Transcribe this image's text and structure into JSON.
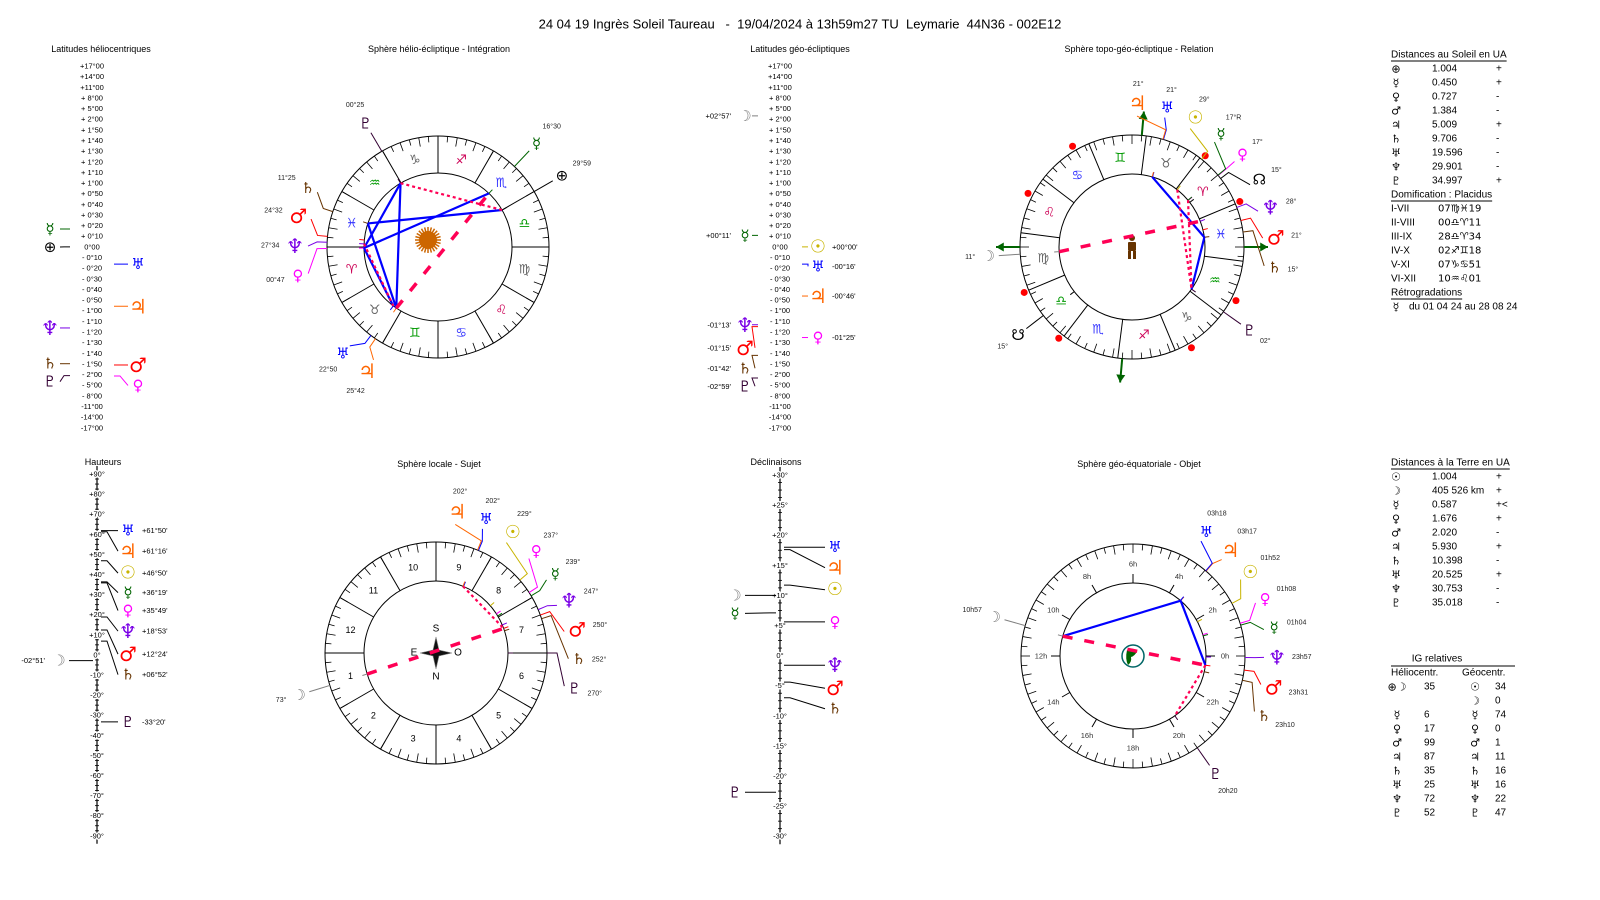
{
  "title": "24 04 19 Ingrès Soleil Taureau   -  19/04/2024 à 13h59m27 TU  Leymarie  44N36 - 002E12",
  "planets": {
    "earth": {
      "glyph": "⊕",
      "color": "#000000"
    },
    "sun": {
      "glyph": "☉",
      "color": "#c8b400"
    },
    "moon": {
      "glyph": "☽",
      "color": "#808080"
    },
    "mercury": {
      "glyph": "☿",
      "color": "#006400"
    },
    "venus": {
      "glyph": "♀",
      "color": "#ff00ff"
    },
    "mars": {
      "glyph": "♂",
      "color": "#ff0000"
    },
    "jupiter": {
      "glyph": "♃",
      "color": "#ff6600"
    },
    "saturn": {
      "glyph": "♄",
      "color": "#663300"
    },
    "uranus": {
      "glyph": "♅",
      "color": "#0000ff"
    },
    "neptune": {
      "glyph": "♆",
      "color": "#7a00e6"
    },
    "pluto": {
      "glyph": "♇",
      "color": "#330033"
    },
    "node": {
      "glyph": "☊",
      "color": "#000000"
    },
    "south_node": {
      "glyph": "☋",
      "color": "#000000"
    }
  },
  "signs": [
    {
      "glyph": "♈",
      "color": "#cc0055"
    },
    {
      "glyph": "♉",
      "color": "#666666"
    },
    {
      "glyph": "♊",
      "color": "#009900"
    },
    {
      "glyph": "♋",
      "color": "#3333ff"
    },
    {
      "glyph": "♌",
      "color": "#cc0055"
    },
    {
      "glyph": "♍",
      "color": "#666666"
    },
    {
      "glyph": "♎",
      "color": "#009900"
    },
    {
      "glyph": "♏",
      "color": "#3333ff"
    },
    {
      "glyph": "♐",
      "color": "#cc0055"
    },
    {
      "glyph": "♑",
      "color": "#666666"
    },
    {
      "glyph": "♒",
      "color": "#009900"
    },
    {
      "glyph": "♓",
      "color": "#3333ff"
    }
  ],
  "aspect_colors": {
    "blue": "#0000ff",
    "red": "#ff0055"
  },
  "chart_data": [
    {
      "type": "scale",
      "id": "helio_lat",
      "title": "Latitudes héliocentriques",
      "ticks": [
        "+17°00",
        "+14°00",
        "+11°00",
        "+ 8°00",
        "+ 5°00",
        "+ 2°00",
        "+ 1°50",
        "+ 1°40",
        "+ 1°30",
        "+ 1°20",
        "+ 1°10",
        "+ 1°00",
        "+ 0°50",
        "+ 0°40",
        "+ 0°30",
        "+ 0°20",
        "+ 0°10",
        "0°00",
        "- 0°10",
        "- 0°20",
        "- 0°30",
        "- 0°40",
        "- 0°50",
        "- 1°00",
        "- 1°10",
        "- 1°20",
        "- 1°30",
        "- 1°40",
        "- 1°50",
        "- 2°00",
        "- 5°00",
        "- 8°00",
        "-11°00",
        "-14°00",
        "-17°00"
      ],
      "planets": [
        {
          "p": "mercury",
          "value": 0.28,
          "side": "left"
        },
        {
          "p": "earth",
          "value": 0.0,
          "side": "left"
        },
        {
          "p": "uranus",
          "value": -0.27,
          "side": "right"
        },
        {
          "p": "jupiter",
          "value": -0.93,
          "side": "right"
        },
        {
          "p": "neptune",
          "value": -1.27,
          "side": "left"
        },
        {
          "p": "saturn",
          "value": -1.83,
          "side": "left"
        },
        {
          "p": "mars",
          "value": -1.85,
          "side": "right"
        },
        {
          "p": "pluto",
          "value": -2.3,
          "side": "left"
        },
        {
          "p": "venus",
          "value": -2.4,
          "side": "right"
        }
      ]
    },
    {
      "type": "wheel",
      "id": "helio_wheel",
      "title": "Sphère hélio-écliptique - Intégration",
      "rotation": 0,
      "planets": [
        {
          "p": "pluto",
          "lon": 300.42,
          "label": "00°25"
        },
        {
          "p": "mars",
          "lon": 354.53,
          "label": "24°32"
        },
        {
          "p": "saturn",
          "lon": 341.42,
          "label": "11°25"
        },
        {
          "p": "neptune",
          "lon": 357.57,
          "label": "27°34"
        },
        {
          "p": "venus",
          "lon": 0.78,
          "label": "00°47"
        },
        {
          "p": "uranus",
          "lon": 52.83,
          "label": "22°50"
        },
        {
          "p": "jupiter",
          "lon": 55.7,
          "label": "25°42"
        },
        {
          "p": "mercury",
          "lon": 226.5,
          "label": "16°30"
        },
        {
          "p": "earth",
          "lon": 209.98,
          "label": "29°59"
        }
      ],
      "aspects": [
        {
          "a": "pluto",
          "b": "jupiter",
          "kind": "blue"
        },
        {
          "a": "pluto",
          "b": "venus",
          "kind": "blue"
        },
        {
          "a": "venus",
          "b": "mercury",
          "kind": "blue"
        },
        {
          "a": "saturn",
          "b": "earth",
          "kind": "blue"
        },
        {
          "a": "venus",
          "b": "uranus",
          "kind": "blue"
        },
        {
          "a": "saturn",
          "b": "jupiter",
          "kind": "blue"
        },
        {
          "a": "pluto",
          "b": "earth",
          "kind": "red-dot"
        },
        {
          "a": "neptune",
          "b": "uranus",
          "kind": "red-dot"
        },
        {
          "a": "jupiter",
          "b": "mercury",
          "kind": "red-dash"
        }
      ]
    },
    {
      "type": "scale",
      "id": "geo_lat",
      "title": "Latitudes géo-écliptiques",
      "ticks": [
        "+17°00",
        "+14°00",
        "+11°00",
        "+ 8°00",
        "+ 5°00",
        "+ 2°00",
        "+ 1°50",
        "+ 1°40",
        "+ 1°30",
        "+ 1°20",
        "+ 1°10",
        "+ 1°00",
        "+ 0°50",
        "+ 0°40",
        "+ 0°30",
        "+ 0°20",
        "+ 0°10",
        "0°00",
        "- 0°10",
        "- 0°20",
        "- 0°30",
        "- 0°40",
        "- 0°50",
        "- 1°00",
        "- 1°10",
        "- 1°20",
        "- 1°30",
        "- 1°40",
        "- 1°50",
        "- 2°00",
        "- 5°00",
        "- 8°00",
        "-11°00",
        "-14°00",
        "-17°00"
      ],
      "planets": [
        {
          "p": "moon",
          "value": 2.95,
          "side": "left",
          "label": "+02°57'"
        },
        {
          "p": "mercury",
          "value": 0.18,
          "side": "left",
          "label": "+00°11'"
        },
        {
          "p": "sun",
          "value": 0.0,
          "side": "right",
          "label": "+00°00'"
        },
        {
          "p": "uranus",
          "value": -0.27,
          "side": "right",
          "label": "-00°16'"
        },
        {
          "p": "jupiter",
          "value": -0.77,
          "side": "right",
          "label": "-00°46'"
        },
        {
          "p": "neptune",
          "value": -1.22,
          "side": "left",
          "label": "-01°13'"
        },
        {
          "p": "mars",
          "value": -1.25,
          "side": "left",
          "label": "-01°15'"
        },
        {
          "p": "venus",
          "value": -1.42,
          "side": "right",
          "label": "-01°25'"
        },
        {
          "p": "saturn",
          "value": -1.7,
          "side": "left",
          "label": "-01°42'"
        },
        {
          "p": "pluto",
          "value": -2.98,
          "side": "left",
          "label": "-02°59'"
        }
      ]
    },
    {
      "type": "wheel",
      "id": "topo_wheel",
      "title": "Sphère topo-géo-écliptique - Relation",
      "rotation": 157.32,
      "house_cusps": [
        157.32,
        180.18,
        208.57,
        242.3,
        277.85,
        310.02,
        337.32,
        0.18,
        28.57,
        62.3,
        97.85,
        130.02
      ],
      "planets": [
        {
          "p": "uranus",
          "lon": 51.0,
          "label": "21°"
        },
        {
          "p": "jupiter",
          "lon": 51.3,
          "label": "21°"
        },
        {
          "p": "sun",
          "lon": 29.0,
          "label": "29°"
        },
        {
          "p": "venus",
          "lon": 17.0,
          "label": "17°"
        },
        {
          "p": "mercury",
          "lon": 17.2,
          "label": "17°R"
        },
        {
          "p": "node",
          "lon": 15.0,
          "label": "15°"
        },
        {
          "p": "neptune",
          "lon": 358.0,
          "label": "28°"
        },
        {
          "p": "mars",
          "lon": 351.0,
          "label": "21°"
        },
        {
          "p": "saturn",
          "lon": 345.0,
          "label": "15°"
        },
        {
          "p": "pluto",
          "lon": 302.0,
          "label": "02°"
        },
        {
          "p": "moon",
          "lon": 161.0,
          "label": "11°"
        },
        {
          "p": "south_node",
          "lon": 195.0,
          "label": "15°"
        }
      ],
      "aspects": [
        {
          "a": "jupiter",
          "b": "saturn",
          "kind": "blue"
        },
        {
          "a": "saturn",
          "b": "pluto",
          "kind": "blue"
        },
        {
          "a": "sun",
          "b": "pluto",
          "kind": "red-dot"
        },
        {
          "a": "mercury",
          "b": "pluto",
          "kind": "red-dot"
        },
        {
          "a": "moon",
          "b": "neptune",
          "kind": "red-dash"
        }
      ]
    },
    {
      "type": "scale",
      "id": "hauteurs",
      "title": "Hauteurs",
      "ticks": [
        "+90°",
        "+80°",
        "+70°",
        "+60°",
        "+50°",
        "+40°",
        "+30°",
        "+20°",
        "+10°",
        "0°",
        "-10°",
        "-20°",
        "-30°",
        "-40°",
        "-50°",
        "-60°",
        "-70°",
        "-80°",
        "-90°"
      ],
      "planets": [
        {
          "p": "uranus",
          "value": 61.83,
          "side": "right",
          "label": "+61°50'"
        },
        {
          "p": "jupiter",
          "value": 61.27,
          "side": "right",
          "label": "+61°16'"
        },
        {
          "p": "sun",
          "value": 46.83,
          "side": "right",
          "label": "+46°50'"
        },
        {
          "p": "mercury",
          "value": 36.32,
          "side": "right",
          "label": "+36°19'"
        },
        {
          "p": "venus",
          "value": 35.82,
          "side": "right",
          "label": "+35°49'"
        },
        {
          "p": "neptune",
          "value": 18.88,
          "side": "right",
          "label": "+18°53'"
        },
        {
          "p": "mars",
          "value": 12.4,
          "side": "right",
          "label": "+12°24'"
        },
        {
          "p": "saturn",
          "value": 6.87,
          "side": "right",
          "label": "+06°52'"
        },
        {
          "p": "moon",
          "value": -2.85,
          "side": "left",
          "label": "-02°51'"
        },
        {
          "p": "pluto",
          "value": -33.33,
          "side": "right",
          "label": "-33°20'"
        }
      ]
    },
    {
      "type": "wheel",
      "id": "local_wheel",
      "title": "Sphère locale - Sujet",
      "houses": [
        "1",
        "2",
        "3",
        "4",
        "5",
        "6",
        "7",
        "8",
        "9",
        "10",
        "11",
        "12"
      ],
      "compass": {
        "s": "S",
        "n": "N",
        "e": "E",
        "o": "O"
      },
      "planets": [
        {
          "p": "jupiter",
          "az": 202,
          "label": "202°"
        },
        {
          "p": "uranus",
          "az": 202.5,
          "label": "202°"
        },
        {
          "p": "sun",
          "az": 229,
          "label": "229°"
        },
        {
          "p": "venus",
          "az": 237,
          "label": "237°"
        },
        {
          "p": "mercury",
          "az": 239,
          "label": "239°"
        },
        {
          "p": "neptune",
          "az": 247,
          "label": "247°"
        },
        {
          "p": "mars",
          "az": 250,
          "label": "250°"
        },
        {
          "p": "saturn",
          "az": 252,
          "label": "252°"
        },
        {
          "p": "pluto",
          "az": 270,
          "label": "270°"
        },
        {
          "p": "moon",
          "az": 73,
          "label": "73°"
        }
      ],
      "aspects": [
        {
          "a": "jupiter",
          "b": "mars",
          "kind": "red-dot"
        },
        {
          "a": "moon",
          "b": "mars",
          "kind": "red-dash"
        }
      ]
    },
    {
      "type": "scale",
      "id": "declinaisons",
      "title": "Déclinaisons",
      "ticks": [
        "+30°",
        "+25°",
        "+20°",
        "+15°",
        "+10°",
        "+5°",
        "0°",
        "-5°",
        "-10°",
        "-15°",
        "-20°",
        "-25°",
        "-30°"
      ],
      "planets": [
        {
          "p": "uranus",
          "value": 18.0,
          "side": "right"
        },
        {
          "p": "jupiter",
          "value": 17.6,
          "side": "right"
        },
        {
          "p": "sun",
          "value": 11.7,
          "side": "right"
        },
        {
          "p": "moon",
          "value": 10.0,
          "side": "left"
        },
        {
          "p": "mercury",
          "value": 7.1,
          "side": "left"
        },
        {
          "p": "venus",
          "value": 5.6,
          "side": "right"
        },
        {
          "p": "neptune",
          "value": -1.6,
          "side": "right"
        },
        {
          "p": "mars",
          "value": -4.4,
          "side": "right"
        },
        {
          "p": "saturn",
          "value": -7.0,
          "side": "right"
        },
        {
          "p": "pluto",
          "value": -22.7,
          "side": "left"
        }
      ]
    },
    {
      "type": "wheel",
      "id": "equa_wheel",
      "title": "Sphère géo-équatoriale - Objet",
      "hours": [
        "0h",
        "2h",
        "4h",
        "6h",
        "8h",
        "10h",
        "12h",
        "14h",
        "16h",
        "18h",
        "20h",
        "22h"
      ],
      "planets": [
        {
          "p": "uranus",
          "ra": 3.3,
          "label": "03h18"
        },
        {
          "p": "jupiter",
          "ra": 3.283,
          "label": "03h17"
        },
        {
          "p": "sun",
          "ra": 1.867,
          "label": "01h52"
        },
        {
          "p": "venus",
          "ra": 1.133,
          "label": "01h08"
        },
        {
          "p": "mercury",
          "ra": 1.067,
          "label": "01h04"
        },
        {
          "p": "neptune",
          "ra": 23.95,
          "label": "23h57"
        },
        {
          "p": "mars",
          "ra": 23.517,
          "label": "23h31"
        },
        {
          "p": "saturn",
          "ra": 23.167,
          "label": "23h10"
        },
        {
          "p": "pluto",
          "ra": 20.333,
          "label": "20h20"
        },
        {
          "p": "moon",
          "ra": 10.95,
          "label": "10h57"
        }
      ],
      "aspects": [
        {
          "a": "moon",
          "b": "jupiter",
          "kind": "blue"
        },
        {
          "a": "jupiter",
          "b": "mars",
          "kind": "blue"
        },
        {
          "a": "moon",
          "b": "mars",
          "kind": "red-dash"
        },
        {
          "a": "mars",
          "b": "pluto",
          "kind": "red-dot"
        }
      ]
    }
  ],
  "sun_distances": {
    "title": "Distances au Soleil en UA",
    "rows": [
      {
        "p": "earth",
        "value": "1.004",
        "trend": "+"
      },
      {
        "p": "mercury",
        "value": "0.450",
        "trend": "+"
      },
      {
        "p": "venus",
        "value": "0.727",
        "trend": "-"
      },
      {
        "p": "mars",
        "value": "1.384",
        "trend": "-"
      },
      {
        "p": "jupiter",
        "value": "5.009",
        "trend": "+"
      },
      {
        "p": "saturn",
        "value": "9.706",
        "trend": "-"
      },
      {
        "p": "uranus",
        "value": "19.596",
        "trend": "-"
      },
      {
        "p": "neptune",
        "value": "29.901",
        "trend": "-"
      },
      {
        "p": "pluto",
        "value": "34.997",
        "trend": "+"
      }
    ]
  },
  "domification": {
    "title": "Domification : Placidus",
    "rows": [
      {
        "houses": "I-VII",
        "value": "07♍♓19"
      },
      {
        "houses": "II-VIII",
        "value": "00♎♈11"
      },
      {
        "houses": "III-IX",
        "value": "28♎♈34"
      },
      {
        "houses": "IV-X",
        "value": "02♐♊18"
      },
      {
        "houses": "V-XI",
        "value": "07♑♋51"
      },
      {
        "houses": "VI-XII",
        "value": "10♒♌01"
      }
    ]
  },
  "retrogradations": {
    "title": "Rétrogradations",
    "rows": [
      {
        "p": "mercury",
        "text": "du 01 04 24 au 28 08 24"
      }
    ]
  },
  "earth_distances": {
    "title": "Distances à la Terre en UA",
    "rows": [
      {
        "p": "sun",
        "value": "1.004",
        "trend": "+"
      },
      {
        "p": "moon",
        "value": "405 526 km",
        "trend": "+"
      },
      {
        "p": "mercury",
        "value": "0.587",
        "trend": "+<"
      },
      {
        "p": "venus",
        "value": "1.676",
        "trend": "+"
      },
      {
        "p": "mars",
        "value": "2.020",
        "trend": "-"
      },
      {
        "p": "jupiter",
        "value": "5.930",
        "trend": "+"
      },
      {
        "p": "saturn",
        "value": "10.398",
        "trend": "-"
      },
      {
        "p": "uranus",
        "value": "20.525",
        "trend": "+"
      },
      {
        "p": "neptune",
        "value": "30.753",
        "trend": "-"
      },
      {
        "p": "pluto",
        "value": "35.018",
        "trend": "-"
      }
    ]
  },
  "ig_relatives": {
    "title": "IG relatives",
    "helio_header": "Héliocentr.",
    "geo_header": "Géocentr.",
    "rows": [
      {
        "hg": "⊕☽",
        "hv": "35",
        "gg": "☉",
        "gv": "34"
      },
      {
        "hg": "",
        "hv": "",
        "gg": "☽",
        "gv": "0"
      },
      {
        "hg": "☿",
        "hv": "6",
        "gg": "☿",
        "gv": "74"
      },
      {
        "hg": "♀",
        "hv": "17",
        "gg": "♀",
        "gv": "0"
      },
      {
        "hg": "♂",
        "hv": "99",
        "gg": "♂",
        "gv": "1"
      },
      {
        "hg": "♃",
        "hv": "87",
        "gg": "♃",
        "gv": "11"
      },
      {
        "hg": "♄",
        "hv": "35",
        "gg": "♄",
        "gv": "16"
      },
      {
        "hg": "♅",
        "hv": "25",
        "gg": "♅",
        "gv": "16"
      },
      {
        "hg": "♆",
        "hv": "72",
        "gg": "♆",
        "gv": "22"
      },
      {
        "hg": "♇",
        "hv": "52",
        "gg": "♇",
        "gv": "47"
      }
    ]
  }
}
